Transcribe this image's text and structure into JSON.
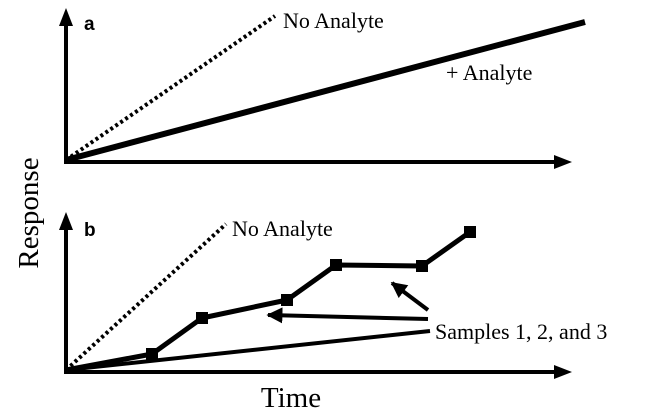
{
  "figure": {
    "y_axis_label": "Response",
    "x_axis_label": "Time",
    "panel_a": {
      "letter": "a",
      "no_analyte_label": "No Analyte",
      "analyte_label": "+ Analyte"
    },
    "panel_b": {
      "letter": "b",
      "no_analyte_label": "No Analyte",
      "samples_label": "Samples 1, 2, and 3"
    },
    "colors": {
      "line": "#000000",
      "background": "#ffffff"
    }
  }
}
